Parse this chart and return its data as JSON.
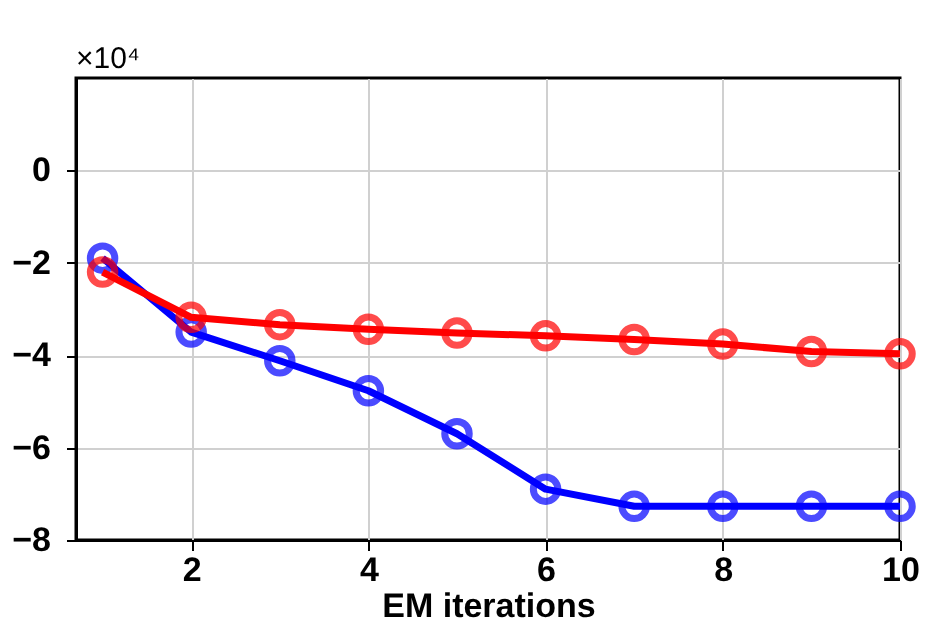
{
  "chart_data": {
    "type": "line",
    "xlabel": "EM iterations",
    "annotations": [
      "×10⁴"
    ],
    "x": [
      1,
      2,
      3,
      4,
      5,
      6,
      7,
      8,
      9,
      10
    ],
    "series": [
      {
        "color": "#0000ff",
        "values": [
          -1.9,
          -3.5,
          -4.12,
          -4.77,
          -5.7,
          -6.9,
          -7.27,
          -7.27,
          -7.27,
          -7.27
        ]
      },
      {
        "color": "#ff0000",
        "values": [
          -2.2,
          -3.18,
          -3.34,
          -3.44,
          -3.52,
          -3.58,
          -3.66,
          -3.76,
          -3.92,
          -3.97
        ]
      }
    ],
    "xlim": [
      0.7,
      10
    ],
    "xticks": [
      2,
      4,
      6,
      8,
      10
    ],
    "ylim": [
      -8,
      2
    ],
    "yticks": [
      -8,
      -6,
      -4,
      -2,
      0
    ],
    "grid": true,
    "marker": "circle",
    "line_style": "solid",
    "legend": false
  }
}
